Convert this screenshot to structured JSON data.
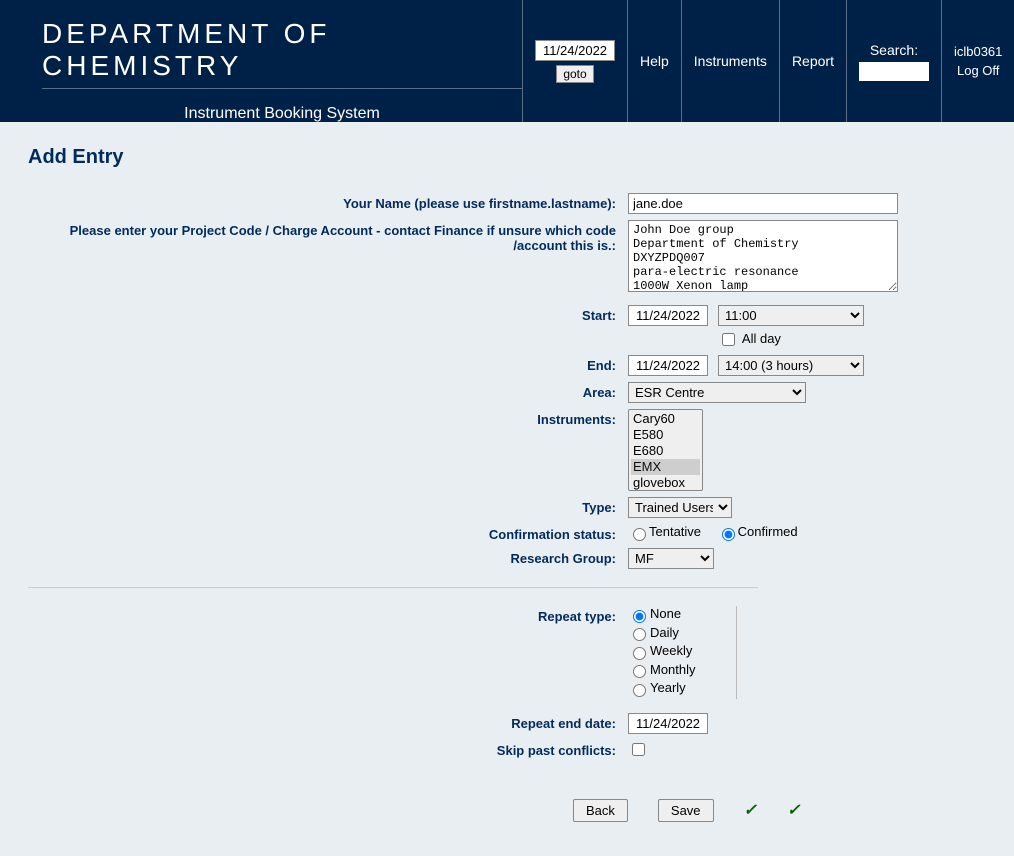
{
  "header": {
    "dept_title": "DEPARTMENT OF CHEMISTRY",
    "system_title": "Instrument Booking System",
    "goto_date": "11/24/2022",
    "goto_button": "goto",
    "help": "Help",
    "instruments": "Instruments",
    "report": "Report",
    "search_label": "Search:",
    "search_value": "",
    "username": "iclb0361",
    "logoff": "Log Off"
  },
  "page_title": "Add Entry",
  "labels": {
    "name": "Your Name (please use firstname.lastname):",
    "project": "Please enter your Project Code / Charge Account - contact Finance if unsure which code /account this is.:",
    "start": "Start:",
    "end": "End:",
    "area": "Area:",
    "instruments": "Instruments:",
    "type": "Type:",
    "confirmation": "Confirmation status:",
    "group": "Research Group:",
    "repeat_type": "Repeat type:",
    "repeat_end": "Repeat end date:",
    "skip": "Skip past conflicts:",
    "allday": "All day",
    "tentative": "Tentative",
    "confirmed": "Confirmed"
  },
  "values": {
    "name": "jane.doe",
    "project": "John Doe group\nDepartment of Chemistry\nDXYZPDQ007\npara-electric resonance\n1000W Xenon lamp",
    "start_date": "11/24/2022",
    "start_time": "11:00",
    "allday": false,
    "end_date": "11/24/2022",
    "end_time": "14:00  (3 hours)",
    "area": "ESR Centre",
    "type": "Trained Users",
    "group": "MF",
    "confirmation": "confirmed",
    "repeat_type": "none",
    "repeat_end_date": "11/24/2022",
    "skip": false
  },
  "instruments_list": [
    "Cary60",
    "E580",
    "E680",
    "EMX",
    "glovebox"
  ],
  "instruments_selected": "EMX",
  "repeat_options": {
    "none": "None",
    "daily": "Daily",
    "weekly": "Weekly",
    "monthly": "Monthly",
    "yearly": "Yearly"
  },
  "buttons": {
    "back": "Back",
    "save": "Save"
  },
  "colors": {
    "header_bg": "#002147",
    "body_bg": "#e9eef2",
    "label_color": "#002b5c",
    "check_color": "#060"
  }
}
